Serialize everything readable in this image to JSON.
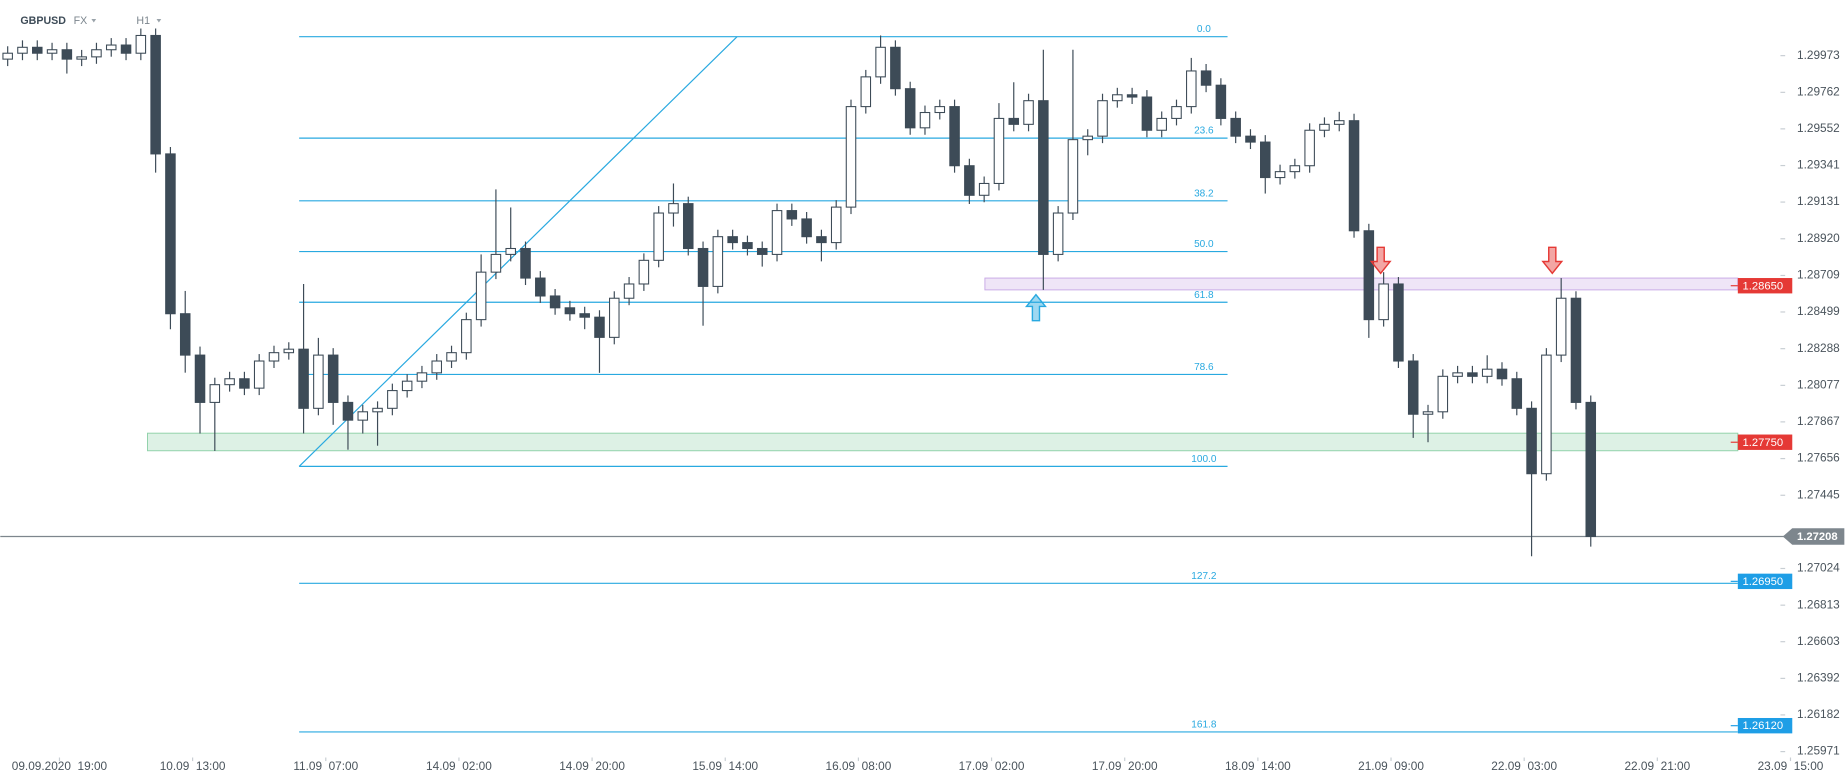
{
  "chart_data": {
    "type": "candlestick",
    "symbol": "GBPUSD",
    "market": "FX",
    "timeframe": "H1",
    "up_color": "#ffffff",
    "down_color": "#3d4b57",
    "outline_color": "#3d4b57",
    "xlim": [
      -8,
      232
    ],
    "ylim": [
      1.25937,
      1.30293
    ],
    "xticks": [
      {
        "value": 0,
        "label": "09.09.2020  19:00"
      },
      {
        "value": 18,
        "label": "10.09  13:00"
      },
      {
        "value": 36,
        "label": "11.09  07:00"
      },
      {
        "value": 54,
        "label": "14.09  02:00"
      },
      {
        "value": 72,
        "label": "14.09  20:00"
      },
      {
        "value": 90,
        "label": "15.09  14:00"
      },
      {
        "value": 108,
        "label": "16.09  08:00"
      },
      {
        "value": 126,
        "label": "17.09  02:00"
      },
      {
        "value": 144,
        "label": "17.09  20:00"
      },
      {
        "value": 162,
        "label": "18.09  14:00"
      },
      {
        "value": 180,
        "label": "21.09  09:00"
      },
      {
        "value": 198,
        "label": "22.09  03:00"
      },
      {
        "value": 216,
        "label": "22.09  21:00"
      },
      {
        "value": 234,
        "label": "23.09  15:00"
      }
    ],
    "yticks": [
      1.29973,
      1.29762,
      1.29552,
      1.29341,
      1.29131,
      {
        "value": 1.2892,
        "label": "1.28920"
      },
      1.28709,
      1.28499,
      1.28288,
      1.28077,
      1.27867,
      1.27656,
      1.27445,
      1.27024,
      1.26813,
      1.26603,
      1.26392,
      1.26182,
      1.25971
    ],
    "x": [
      -7,
      -5,
      -3,
      -1,
      1,
      3,
      5,
      7,
      9,
      11,
      13,
      15,
      17,
      19,
      21,
      23,
      25,
      27,
      29,
      31,
      33,
      35,
      37,
      39,
      41,
      43,
      45,
      47,
      49,
      51,
      53,
      55,
      57,
      59,
      61,
      63,
      65,
      67,
      69,
      71,
      73,
      75,
      77,
      79,
      81,
      83,
      85,
      87,
      89,
      91,
      93,
      95,
      97,
      99,
      101,
      103,
      105,
      107,
      109,
      111,
      113,
      115,
      117,
      119,
      121,
      123,
      125,
      127,
      129,
      131,
      133,
      135,
      137,
      139,
      141,
      143,
      145,
      147,
      149,
      151,
      153,
      155,
      157,
      159,
      161,
      163,
      165,
      167,
      169,
      171,
      173,
      175,
      177,
      179,
      181,
      183,
      185,
      187,
      189,
      191,
      193,
      195,
      197,
      199,
      201,
      203,
      205,
      207
    ],
    "open": [
      1.29953,
      1.29987,
      1.30021,
      1.29987,
      1.30007,
      1.29953,
      1.29966,
      1.30007,
      1.30034,
      1.29987,
      1.30089,
      1.29408,
      1.28489,
      1.28251,
      1.27979,
      1.28081,
      1.28115,
      1.28061,
      1.28217,
      1.28265,
      1.28285,
      1.27945,
      1.28251,
      1.27979,
      1.27877,
      1.27925,
      1.27945,
      1.28047,
      1.28101,
      1.28149,
      1.28217,
      1.28265,
      1.28455,
      1.28728,
      1.2883,
      1.28864,
      1.28694,
      1.28591,
      1.28523,
      1.28489,
      1.28469,
      1.28353,
      1.28578,
      1.2866,
      1.28796,
      1.29068,
      1.29122,
      1.28864,
      1.28646,
      1.28932,
      1.28898,
      1.28864,
      1.2883,
      1.29082,
      1.29034,
      1.28932,
      1.28898,
      1.29102,
      1.2968,
      1.29851,
      1.30021,
      1.29783,
      1.29558,
      1.29646,
      1.2968,
      1.2934,
      1.2917,
      1.29238,
      1.29612,
      1.29578,
      1.29714,
      1.2883,
      1.29068,
      1.2949,
      1.2951,
      1.29714,
      1.29748,
      1.29735,
      1.29544,
      1.29612,
      1.2968,
      1.29885,
      1.29803,
      1.29612,
      1.2951,
      1.29476,
      1.29272,
      1.29306,
      1.2934,
      1.29544,
      1.29578,
      1.29599,
      1.28966,
      1.28455,
      1.2866,
      1.28217,
      1.27911,
      1.27925,
      1.28129,
      1.28149,
      1.28129,
      1.2817,
      1.28115,
      1.27945,
      1.27569,
      1.28251,
      1.28578,
      1.27979
    ],
    "high": [
      1.30027,
      1.30061,
      1.30061,
      1.30047,
      1.30047,
      1.30006,
      1.30047,
      1.30074,
      1.30074,
      1.30129,
      1.30129,
      1.29448,
      1.2862,
      1.283,
      1.28121,
      1.28155,
      1.28155,
      1.28257,
      1.28305,
      1.28325,
      1.2866,
      1.2835,
      1.28291,
      1.28019,
      1.27965,
      1.27985,
      1.28087,
      1.28141,
      1.28189,
      1.28257,
      1.28305,
      1.28495,
      1.2883,
      1.29204,
      1.291,
      1.28904,
      1.28734,
      1.28631,
      1.28563,
      1.28529,
      1.28509,
      1.28618,
      1.287,
      1.28836,
      1.29108,
      1.29238,
      1.29162,
      1.28904,
      1.28972,
      1.28972,
      1.28938,
      1.28904,
      1.29122,
      1.29122,
      1.29074,
      1.28972,
      1.29142,
      1.2972,
      1.29891,
      1.30089,
      1.30061,
      1.29823,
      1.29686,
      1.2972,
      1.2972,
      1.2938,
      1.29278,
      1.297,
      1.2982,
      1.29754,
      1.30007,
      1.29108,
      1.30007,
      1.2955,
      1.29754,
      1.29788,
      1.29788,
      1.29775,
      1.29652,
      1.2972,
      1.2996,
      1.29925,
      1.29843,
      1.29652,
      1.2955,
      1.29516,
      1.29346,
      1.2938,
      1.29584,
      1.29618,
      1.2965,
      1.29639,
      1.29006,
      1.28728,
      1.287,
      1.28257,
      1.27965,
      1.28169,
      1.28189,
      1.28189,
      1.2825,
      1.2821,
      1.28155,
      1.27985,
      1.28291,
      1.28694,
      1.28618,
      1.28019
    ],
    "low": [
      1.29913,
      1.29947,
      1.29947,
      1.29947,
      1.2987,
      1.29913,
      1.29926,
      1.29967,
      1.29947,
      1.29947,
      1.293,
      1.284,
      1.2815,
      1.278,
      1.277,
      1.28041,
      1.28021,
      1.28021,
      1.28177,
      1.28225,
      1.278,
      1.27905,
      1.2785,
      1.27707,
      1.278,
      1.2773,
      1.27905,
      1.28007,
      1.28061,
      1.28109,
      1.28177,
      1.28225,
      1.28415,
      1.28688,
      1.2879,
      1.28654,
      1.28551,
      1.28483,
      1.28449,
      1.284,
      1.28149,
      1.28313,
      1.28538,
      1.2862,
      1.28756,
      1.2899,
      1.28824,
      1.2842,
      1.28606,
      1.28858,
      1.28824,
      1.2876,
      1.2879,
      1.28994,
      1.28892,
      1.2879,
      1.28858,
      1.29062,
      1.2964,
      1.29811,
      1.29743,
      1.29518,
      1.29518,
      1.29606,
      1.293,
      1.2912,
      1.2913,
      1.29198,
      1.29538,
      1.29538,
      1.28626,
      1.2879,
      1.29028,
      1.294,
      1.2947,
      1.29674,
      1.29695,
      1.29504,
      1.29504,
      1.29572,
      1.2964,
      1.29763,
      1.29572,
      1.2947,
      1.29436,
      1.2918,
      1.29232,
      1.29266,
      1.293,
      1.29504,
      1.29538,
      1.28926,
      1.2835,
      1.28415,
      1.28177,
      1.27775,
      1.2775,
      1.27885,
      1.28089,
      1.28089,
      1.28089,
      1.28075,
      1.27905,
      1.27094,
      1.27529,
      1.28211,
      1.27939,
      1.2715
    ],
    "close": [
      1.29987,
      1.30021,
      1.29987,
      1.30007,
      1.29953,
      1.29966,
      1.30007,
      1.30034,
      1.29987,
      1.30089,
      1.29408,
      1.28489,
      1.28251,
      1.27979,
      1.28081,
      1.28115,
      1.28061,
      1.28217,
      1.28265,
      1.28285,
      1.27945,
      1.28251,
      1.27979,
      1.27877,
      1.27925,
      1.27945,
      1.28047,
      1.28101,
      1.28149,
      1.28217,
      1.28265,
      1.28455,
      1.28728,
      1.2883,
      1.28864,
      1.28694,
      1.28591,
      1.28523,
      1.28489,
      1.28469,
      1.28353,
      1.28578,
      1.2866,
      1.28796,
      1.29068,
      1.29122,
      1.28864,
      1.28646,
      1.28932,
      1.28898,
      1.28864,
      1.2883,
      1.29082,
      1.29034,
      1.28932,
      1.28898,
      1.29102,
      1.2968,
      1.29851,
      1.30021,
      1.29783,
      1.29558,
      1.29646,
      1.2968,
      1.2934,
      1.2917,
      1.29238,
      1.29612,
      1.29578,
      1.29714,
      1.2883,
      1.29068,
      1.2949,
      1.2951,
      1.29714,
      1.29748,
      1.29735,
      1.29544,
      1.29612,
      1.2968,
      1.29885,
      1.29803,
      1.29612,
      1.2951,
      1.29476,
      1.29272,
      1.29306,
      1.2934,
      1.29544,
      1.29578,
      1.29599,
      1.28966,
      1.28455,
      1.2866,
      1.28217,
      1.27911,
      1.27925,
      1.28129,
      1.28149,
      1.28129,
      1.2817,
      1.28115,
      1.27945,
      1.27569,
      1.28251,
      1.28578,
      1.27979,
      1.27208
    ],
    "fibonacci": {
      "color": "#29a9e0",
      "from": {
        "x": 32.4,
        "y": 1.27611
      },
      "to": {
        "x": 91.6,
        "y": 1.30082
      },
      "end_x": 157.9,
      "levels": [
        {
          "value": 0,
          "label": "0.0"
        },
        23.6,
        38.2,
        {
          "value": 50,
          "label": "50.0"
        },
        61.8,
        78.6,
        {
          "value": 100,
          "label": "100.0"
        },
        127.2,
        161.8
      ]
    },
    "zones": [
      {
        "from": 1.28626,
        "to": 1.28694,
        "start_x": 125.1,
        "color": "#c9a9e6"
      },
      {
        "from": 1.27701,
        "to": 1.27802,
        "start_x": 11.9,
        "color": "#8fd1a8"
      }
    ],
    "markers": [
      {
        "x": 132,
        "direction": "up",
        "color": "#29a9e0"
      },
      {
        "x": 178.6,
        "direction": "down",
        "color": "#e53935"
      },
      {
        "x": 201.8,
        "direction": "down",
        "color": "#e53935"
      }
    ],
    "price_tags": [
      {
        "value": 1.2865,
        "label": "1.28650",
        "color": "#e53935"
      },
      {
        "value": 1.2775,
        "label": "1.27750",
        "color": "#e53935"
      },
      {
        "value": 1.2695,
        "label": "1.26950",
        "color": "#1e9ee6"
      },
      {
        "value": 1.2612,
        "label": "1.26120",
        "color": "#1e9ee6"
      }
    ],
    "current_price": {
      "value": 1.27208,
      "label": "1.27208",
      "color": "#7d868d"
    }
  }
}
